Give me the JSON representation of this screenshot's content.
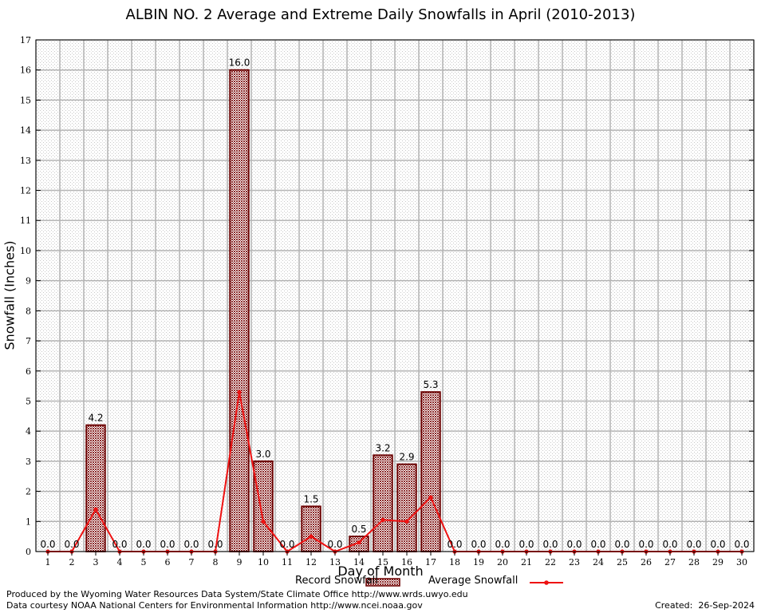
{
  "colors": {
    "bar_fill": "#8b2a2a",
    "bar_stroke": "#6b0000",
    "line": "#ee1111",
    "grid": "#b4b4b4",
    "grid_minor": "#d8d8d8"
  },
  "chart_data": {
    "type": "bar",
    "title": "ALBIN NO. 2 Average and Extreme Daily Snowfalls in April (2010-2013)",
    "xlabel": "Day of Month",
    "ylabel": "Snowfall (Inches)",
    "ylim": [
      0,
      17
    ],
    "yticks": [
      0,
      1,
      2,
      3,
      4,
      5,
      6,
      7,
      8,
      9,
      10,
      11,
      12,
      13,
      14,
      15,
      16,
      17
    ],
    "grid": true,
    "legend_position": "bottom",
    "categories": [
      "1",
      "2",
      "3",
      "4",
      "5",
      "6",
      "7",
      "8",
      "9",
      "10",
      "11",
      "12",
      "13",
      "14",
      "15",
      "16",
      "17",
      "18",
      "19",
      "20",
      "21",
      "22",
      "23",
      "24",
      "25",
      "26",
      "27",
      "28",
      "29",
      "30"
    ],
    "series": [
      {
        "name": "Record Snowfall",
        "kind": "bar",
        "values": [
          0,
          0,
          4.2,
          0,
          0,
          0,
          0,
          0,
          16.0,
          3.0,
          0,
          1.5,
          0,
          0.5,
          3.2,
          2.9,
          5.3,
          0,
          0,
          0,
          0,
          0,
          0,
          0,
          0,
          0,
          0,
          0,
          0,
          0
        ],
        "labels": [
          "0.0",
          "0.0",
          "4.2",
          "0.0",
          "0.0",
          "0.0",
          "0.0",
          "0.0",
          "16.0",
          "3.0",
          "0.0",
          "1.5",
          "0.0",
          "0.5",
          "3.2",
          "2.9",
          "5.3",
          "0.0",
          "0.0",
          "0.0",
          "0.0",
          "0.0",
          "0.0",
          "0.0",
          "0.0",
          "0.0",
          "0.0",
          "0.0",
          "0.0",
          "0.0"
        ]
      },
      {
        "name": "Average Snowfall",
        "kind": "line",
        "values": [
          0,
          0,
          1.4,
          0,
          0,
          0,
          0,
          0,
          5.3,
          1.0,
          0,
          0.5,
          0,
          0.3,
          1.05,
          1.0,
          1.8,
          0,
          0,
          0,
          0,
          0,
          0,
          0,
          0,
          0,
          0,
          0,
          0,
          0
        ]
      }
    ]
  },
  "footer": {
    "left_line1": "Produced by the Wyoming Water Resources Data System/State Climate Office http://www.wrds.uwyo.edu",
    "left_line2": "Data courtesy NOAA National Centers for Environmental Information http://www.ncei.noaa.gov",
    "created": "Created:  26-Sep-2024"
  }
}
